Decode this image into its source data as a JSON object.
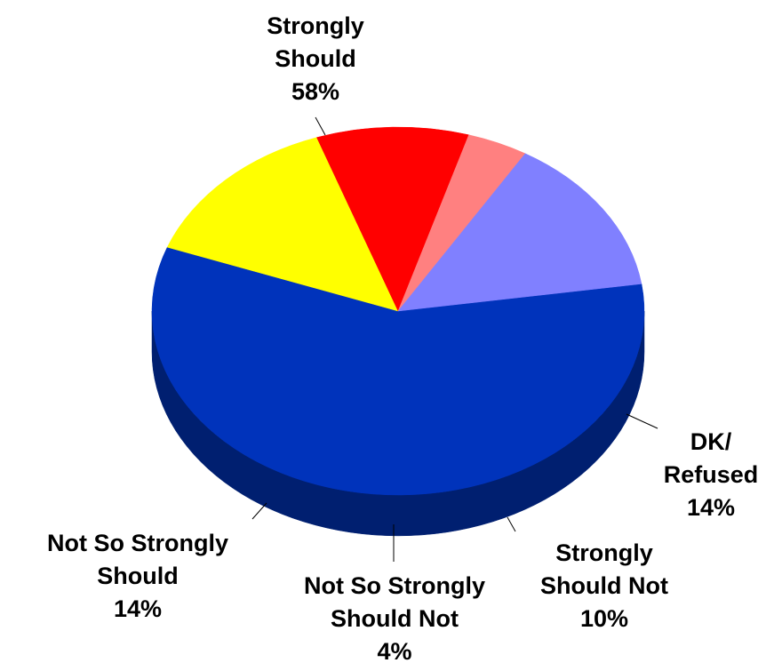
{
  "chart_data": {
    "type": "pie",
    "style": "3d",
    "title": "",
    "slices": [
      {
        "label_lines": [
          "Strongly",
          "Should"
        ],
        "value": 58,
        "value_label": "58%",
        "color": "#0033bb",
        "side_color": "#001f70"
      },
      {
        "label_lines": [
          "DK/",
          "Refused"
        ],
        "value": 14,
        "value_label": "14%",
        "color": "#ffff00",
        "side_color": "#7f7f00"
      },
      {
        "label_lines": [
          "Strongly",
          "Should Not"
        ],
        "value": 10,
        "value_label": "10%",
        "color": "#ff0000",
        "side_color": "#800000"
      },
      {
        "label_lines": [
          "Not So Strongly",
          "Should Not"
        ],
        "value": 4,
        "value_label": "4%",
        "color": "#ff8080",
        "side_color": "#804040"
      },
      {
        "label_lines": [
          "Not So Strongly",
          "Should"
        ],
        "value": 14,
        "value_label": "14%",
        "color": "#8080ff",
        "side_color": "#404080"
      }
    ]
  }
}
